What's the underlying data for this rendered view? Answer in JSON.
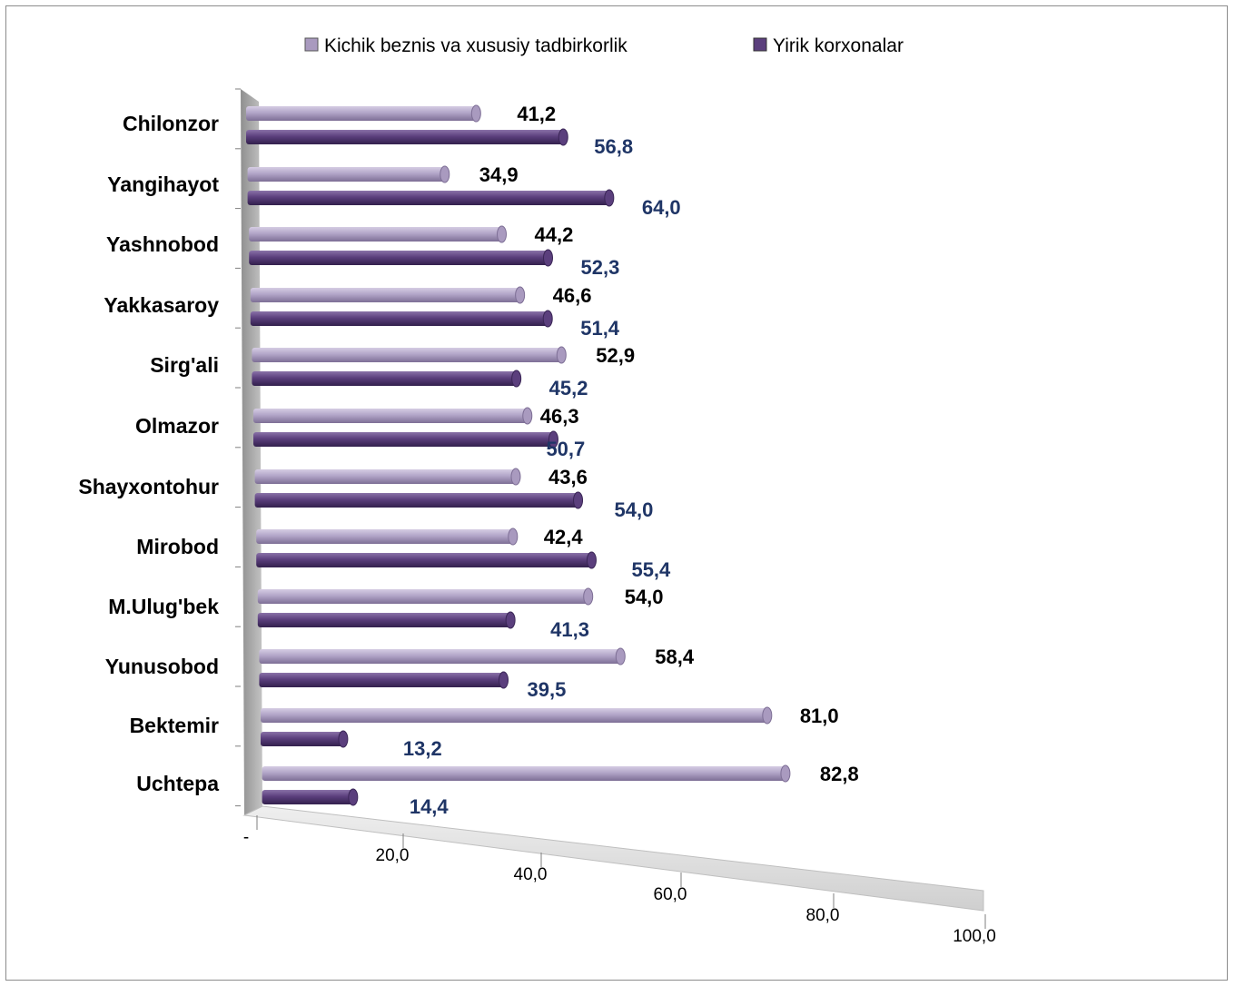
{
  "chart_data": {
    "type": "bar",
    "orientation": "horizontal",
    "three_d": true,
    "legend_position": "top",
    "categories": [
      "Chilonzor",
      "Yangihayot",
      "Yashnobod",
      "Yakkasaroy",
      "Sirg'ali",
      "Olmazor",
      "Shayxontohur",
      "Mirobod",
      "M.Ulug'bek",
      "Yunusobod",
      "Bektemir",
      "Uchtepa"
    ],
    "series": [
      {
        "name": "Kichik beznis va xususiy tadbirkorlik",
        "values": [
          41.2,
          34.9,
          44.2,
          46.6,
          52.9,
          46.3,
          43.6,
          42.4,
          54.0,
          58.4,
          81.0,
          82.8
        ],
        "labels": [
          "41,2",
          "34,9",
          "44,2",
          "46,6",
          "52,9",
          "46,3",
          "43,6",
          "42,4",
          "54,0",
          "58,4",
          "81,0",
          "82,8"
        ]
      },
      {
        "name": "Yirik korxonalar",
        "values": [
          56.8,
          64.0,
          52.3,
          51.4,
          45.2,
          50.7,
          54.0,
          55.4,
          41.3,
          39.5,
          13.2,
          14.4
        ],
        "labels": [
          "56,8",
          "64,0",
          "52,3",
          "51,4",
          "45,2",
          "50,7",
          "54,0",
          "55,4",
          "41,3",
          "39,5",
          "13,2",
          "14,4"
        ]
      }
    ],
    "xlim": [
      0,
      100
    ],
    "x_ticks": [
      "-",
      "20,0",
      "40,0",
      "60,0",
      "80,0",
      "100,0"
    ],
    "grid": false
  },
  "colors": {
    "series0": "#a99abf",
    "series0_dark": "#7d6e95",
    "series1": "#5b3f7d",
    "series1_dark": "#3a2656",
    "wall": "#a6a6a6",
    "floor": "#d9d9d9",
    "label_series1": "#1f3566"
  }
}
